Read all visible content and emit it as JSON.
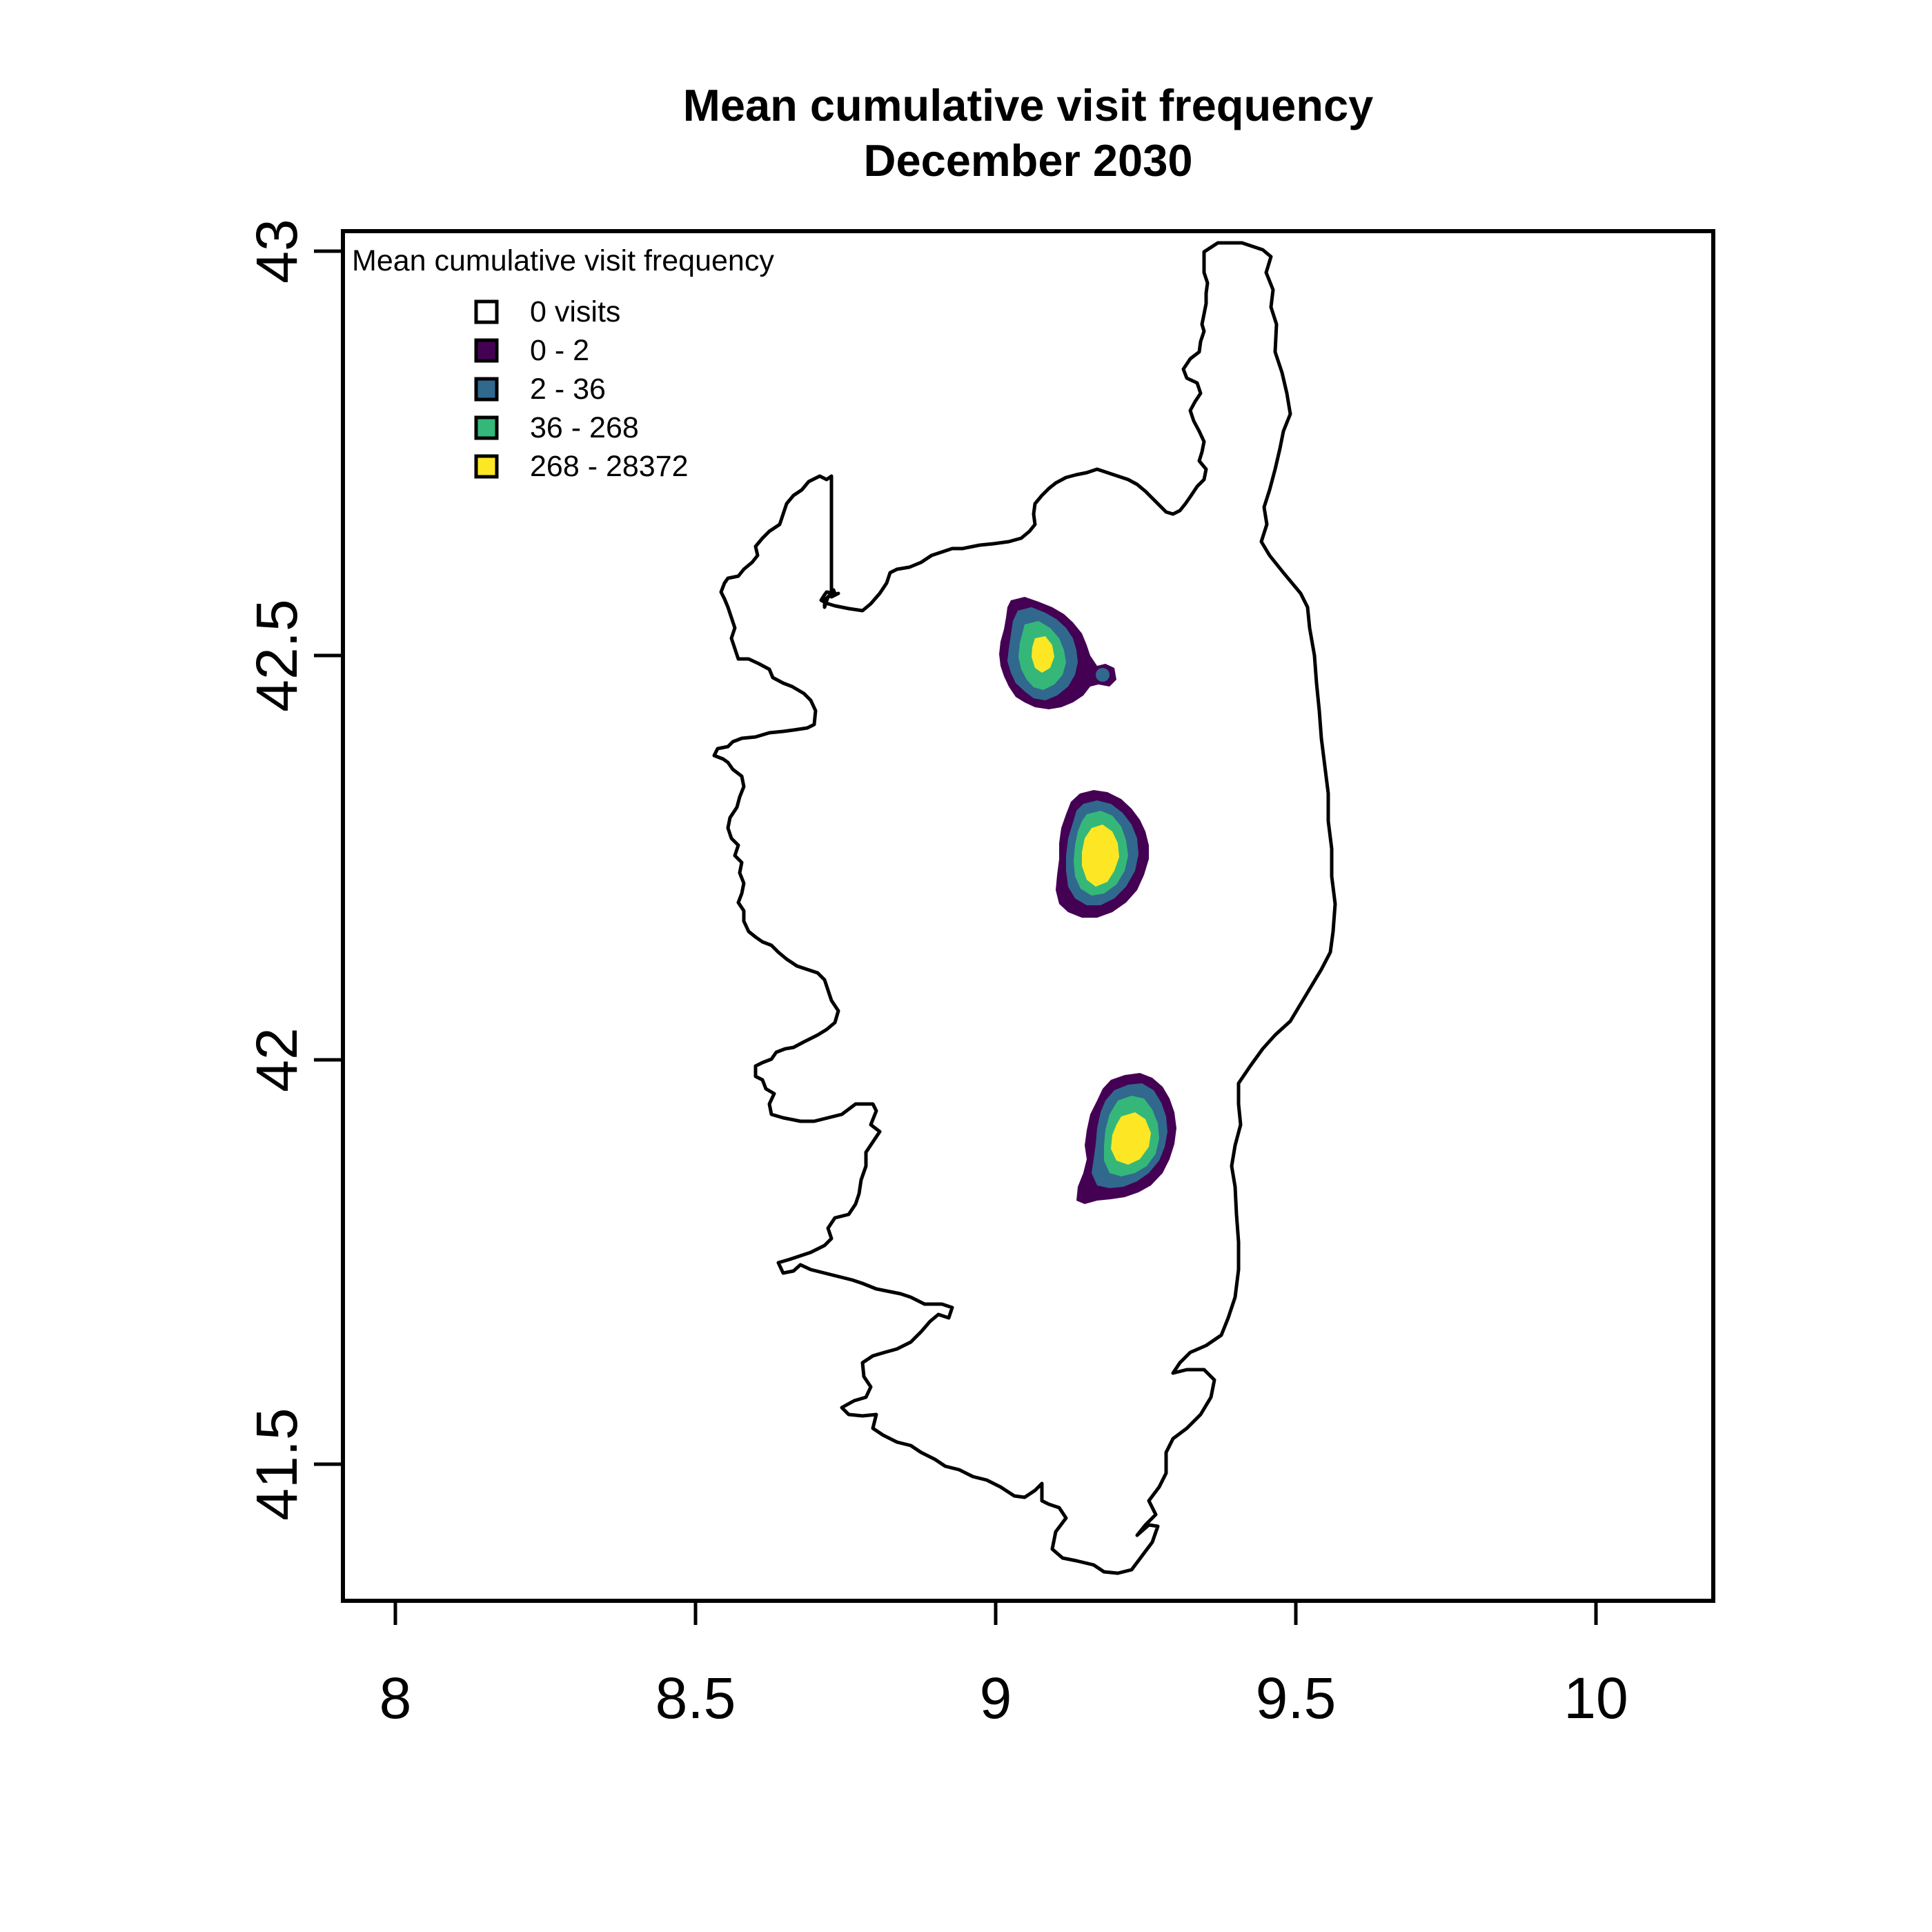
{
  "title": {
    "line1": "Mean cumulative visit frequency",
    "line2": "December 2030"
  },
  "legend": {
    "title": "Mean cumulative visit frequency",
    "placement": "top-left",
    "items": [
      {
        "label": "0 visits",
        "color": "#ffffff"
      },
      {
        "label": "0 - 2",
        "color": "#440154"
      },
      {
        "label": "2 - 36",
        "color": "#31688e"
      },
      {
        "label": "36 - 268",
        "color": "#35b779"
      },
      {
        "label": "268 - 28372",
        "color": "#fde725"
      }
    ]
  },
  "chart_data": {
    "type": "heatmap",
    "title": "Mean cumulative visit frequency\nDecember 2030",
    "xlabel": "",
    "ylabel": "",
    "xlim": [
      7.91,
      10.2
    ],
    "ylim": [
      41.33,
      43.03
    ],
    "x_ticks": [
      "8",
      "8.5",
      "9",
      "9.5",
      "10"
    ],
    "y_ticks": [
      "41.5",
      "42",
      "42.5",
      "43"
    ],
    "grid": false,
    "region": "Corsica coastline outline",
    "colors": {
      "outline": "#000000",
      "low": "#440154",
      "mid_low": "#31688e",
      "mid_high": "#35b779",
      "high": "#fde725"
    },
    "hotspots": [
      {
        "lon": 9.09,
        "lat": 42.51,
        "peak_class": "268 - 28372"
      },
      {
        "lon": 9.18,
        "lat": 42.26,
        "peak_class": "268 - 28372"
      },
      {
        "lon": 9.22,
        "lat": 41.89,
        "peak_class": "268 - 28372"
      }
    ]
  }
}
